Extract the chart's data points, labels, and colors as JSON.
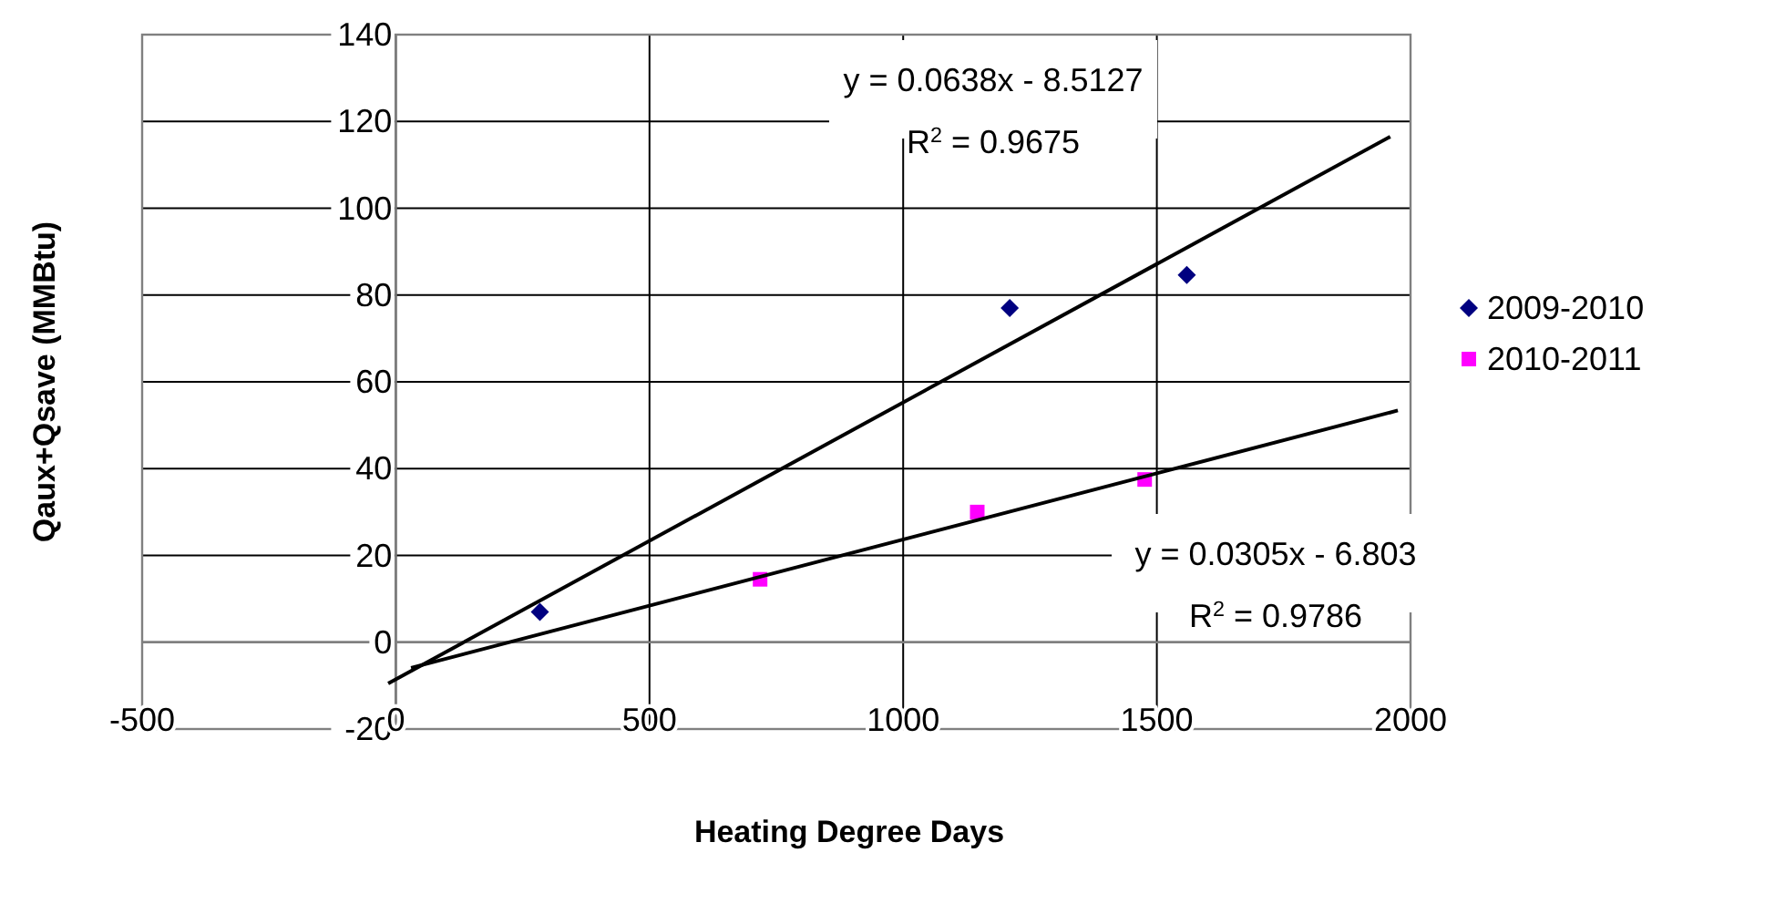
{
  "chart_data": {
    "type": "scatter",
    "xlabel": "Heating Degree Days",
    "ylabel": "Qaux+Qsave (MMBtu)",
    "xlim": [
      -500,
      2000
    ],
    "xticks": [
      -500,
      0,
      500,
      1000,
      1500,
      2000
    ],
    "ylim": [
      -20,
      140
    ],
    "yticks": [
      -20,
      0,
      20,
      40,
      60,
      80,
      100,
      120,
      140
    ],
    "grid": true,
    "legend": "right",
    "series": [
      {
        "name": "2009-2010",
        "marker": "diamond",
        "color": "#000080",
        "x": [
          284,
          1210,
          1559
        ],
        "values": [
          7,
          77,
          84.6
        ]
      },
      {
        "name": "2010-2011",
        "marker": "square",
        "color": "#ff00ff",
        "x": [
          718,
          1146,
          1476
        ],
        "values": [
          14.5,
          30,
          37.5
        ]
      },
      {
        "type": "line",
        "marker": "none",
        "color": "#000000",
        "x": [
          -15,
          1960
        ],
        "values": [
          -9.5,
          116.5
        ]
      },
      {
        "type": "line",
        "marker": "none",
        "color": "#000000",
        "x": [
          30,
          1975
        ],
        "values": [
          -5.9,
          53.4
        ]
      }
    ],
    "annotations": [
      "y = 0.0638x - 8.5127\nR$^{2}$ = 0.9675",
      "y = 0.0305x - 6.803\nR$^{2}$ = 0.9786"
    ]
  }
}
